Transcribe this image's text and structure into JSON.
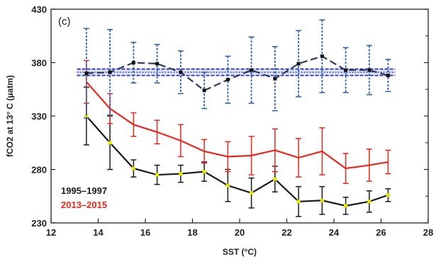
{
  "chart_data": {
    "type": "line",
    "panel_label": "(c)",
    "xlabel": "SST (°C)",
    "ylabel": "fCO2 at 13° C (µatm)",
    "xlim": [
      12,
      28
    ],
    "ylim": [
      230,
      430
    ],
    "xticks": [
      12,
      14,
      16,
      18,
      20,
      22,
      24,
      26,
      28
    ],
    "yticks": [
      230,
      280,
      330,
      380,
      430
    ],
    "atmospheric_band": {
      "center": 371,
      "lower": 368,
      "upper": 374,
      "color": "#2b35b5"
    },
    "series": [
      {
        "name": "1995–1997",
        "color": "#1a1a1a",
        "marker_color": "#e6e600",
        "x": [
          13.5,
          14.5,
          15.5,
          16.5,
          17.5,
          18.5,
          19.5,
          20.5,
          21.5,
          22.5,
          23.5,
          24.5,
          25.5,
          26.3
        ],
        "y": [
          330,
          305,
          281,
          275,
          276,
          278,
          265,
          258,
          271,
          250,
          251,
          246,
          250,
          256
        ],
        "err": [
          27,
          25,
          8,
          9,
          8,
          9,
          15,
          14,
          12,
          14,
          13,
          8,
          10,
          6
        ]
      },
      {
        "name": "2013–2015",
        "color": "#e8281e",
        "x": [
          13.5,
          14.5,
          15.5,
          16.5,
          17.5,
          18.5,
          19.5,
          20.5,
          21.5,
          22.5,
          23.5,
          24.5,
          25.5,
          26.3
        ],
        "y": [
          362,
          337,
          322,
          315,
          307,
          297,
          292,
          293,
          298,
          291,
          297,
          281,
          284,
          287
        ],
        "err": [
          20,
          14,
          11,
          11,
          15,
          11,
          14,
          18,
          20,
          18,
          22,
          14,
          15,
          11
        ]
      },
      {
        "name": "",
        "color": "#2a3b5c",
        "errcolor": "#2b5fae",
        "marker_color": "#111111",
        "dashed": true,
        "x": [
          13.5,
          14.5,
          15.5,
          16.5,
          17.5,
          18.5,
          19.5,
          20.5,
          21.5,
          22.5,
          23.5,
          24.5,
          25.5,
          26.3
        ],
        "y": [
          370,
          371,
          380,
          379,
          371,
          354,
          364,
          373,
          365,
          379,
          386,
          373,
          373,
          368
        ],
        "err": [
          42,
          40,
          19,
          18,
          20,
          17,
          22,
          31,
          30,
          31,
          34,
          21,
          23,
          15
        ]
      }
    ],
    "legend": [
      {
        "label": "1995–1997",
        "color": "#1a1a1a"
      },
      {
        "label": "2013–2015",
        "color": "#e8281e"
      }
    ]
  }
}
